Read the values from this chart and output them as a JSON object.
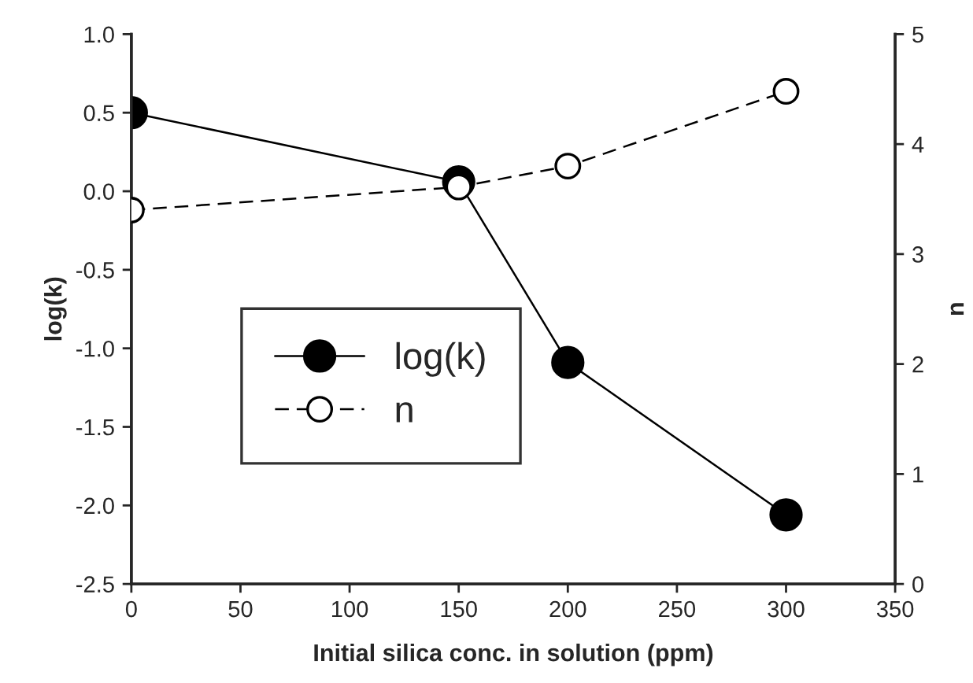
{
  "chart_data": {
    "type": "line",
    "xlabel": "Initial silica conc. in solution (ppm)",
    "ylabel": "log(k)",
    "y2label": "n",
    "x": [
      0,
      150,
      200,
      300
    ],
    "series": [
      {
        "name": "log(k)",
        "color": "#000000",
        "values": [
          0.5,
          0.06,
          -1.09,
          -2.06
        ],
        "line_style": "solid"
      },
      {
        "name": "n",
        "color": "#ffffff",
        "values": [
          3.4,
          3.61,
          3.8,
          4.48
        ],
        "axis": "y2",
        "line_style": "dashed"
      }
    ],
    "xlim": [
      0,
      350
    ],
    "xticks": [
      0,
      50,
      100,
      150,
      200,
      250,
      300,
      350
    ],
    "ylim": [
      -2.5,
      1.0
    ],
    "yticks": [
      {
        "value": -2.5,
        "label": "-2.5"
      },
      {
        "value": -2.0,
        "label": "-2.0"
      },
      {
        "value": -1.5,
        "label": "-1.5"
      },
      {
        "value": -1.0,
        "label": "-1.0"
      },
      {
        "value": -0.5,
        "label": "-0.5"
      },
      {
        "value": 0.0,
        "label": "0.0"
      },
      {
        "value": 0.5,
        "label": "0.5"
      },
      {
        "value": 1.0,
        "label": "1.0"
      }
    ],
    "y2lim": [
      0,
      5
    ],
    "y2ticks": [
      0,
      1,
      2,
      3,
      4,
      5
    ],
    "marker": "circle",
    "grid": false,
    "legend": "center left"
  }
}
